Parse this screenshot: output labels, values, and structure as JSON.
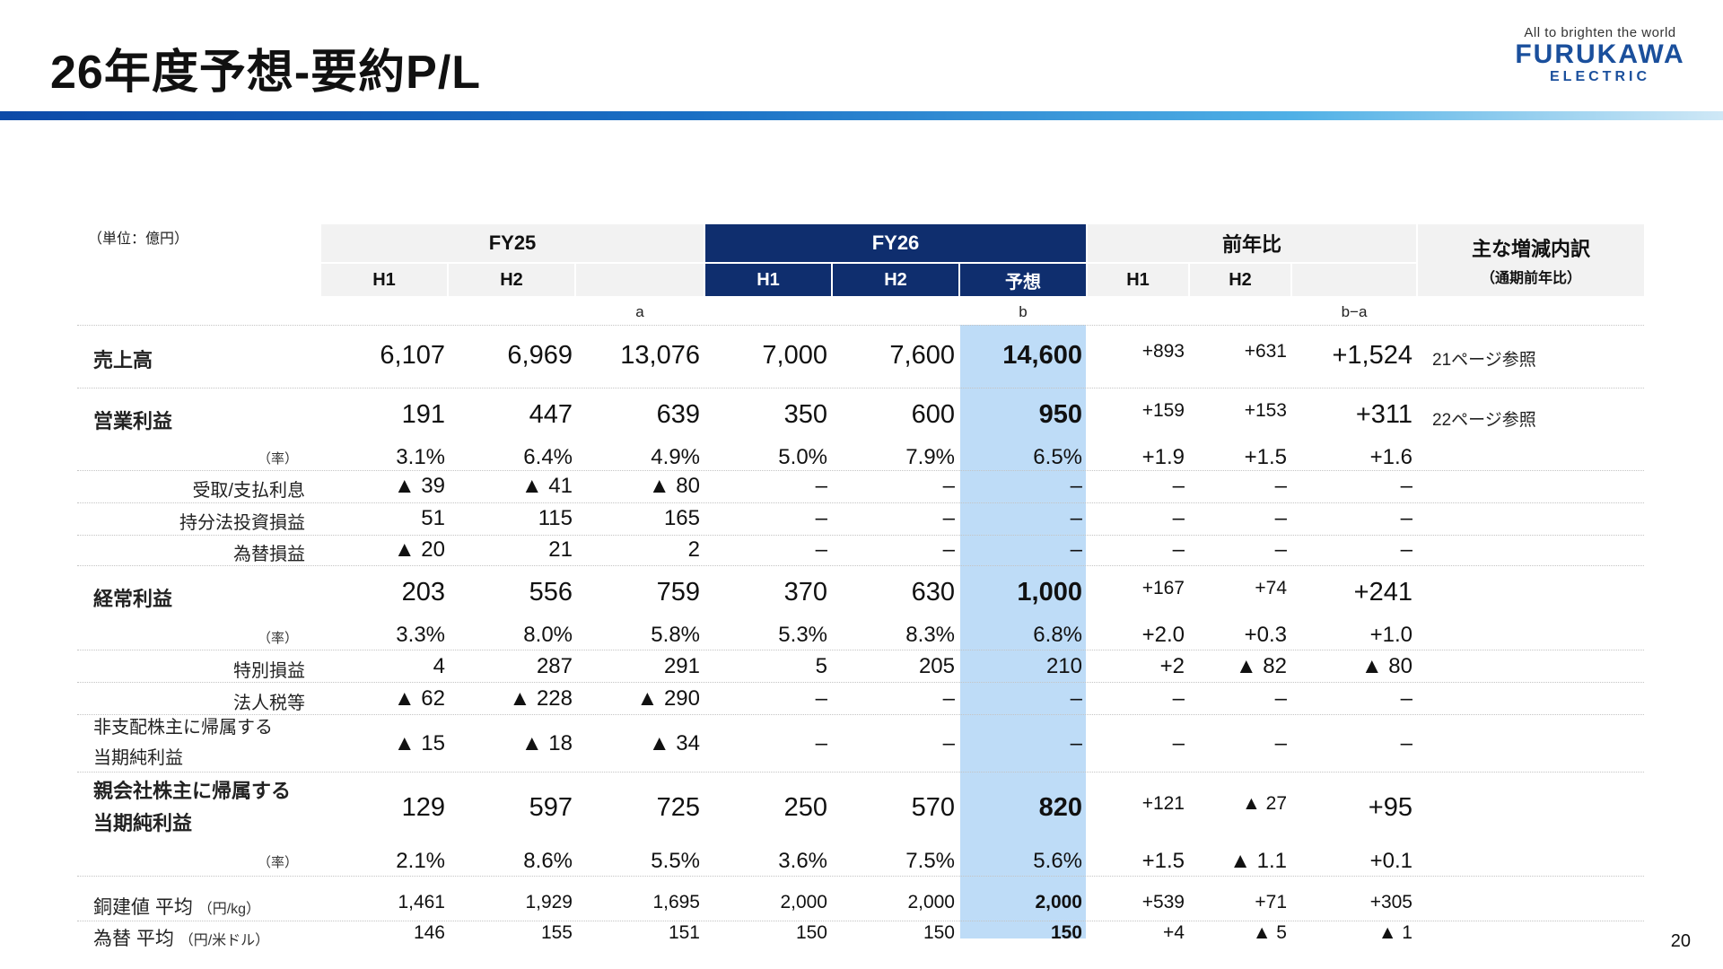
{
  "page": {
    "title": "26年度予想-要約P/L",
    "unit": "（単位：億円）",
    "page_number": "20"
  },
  "logo": {
    "tagline": "All to brighten the world",
    "brand": "FURUKAWA",
    "sub": "ELECTRIC"
  },
  "headers": {
    "fy25": "FY25",
    "fy26": "FY26",
    "yoy": "前年比",
    "notes": "主な増減内訳",
    "notes_sub": "（通期前年比）",
    "h1": "H1",
    "h2": "H2",
    "forecast": "予想",
    "key_a": "a",
    "key_b": "b",
    "key_ba": "b−a"
  },
  "rows": [
    {
      "label": "売上高",
      "values": [
        "6,107",
        "6,969",
        "13,076",
        "7,000",
        "7,600",
        "14,600",
        "+893",
        "+631",
        "+1,524"
      ],
      "note": "21ページ参照"
    },
    {
      "label": "営業利益",
      "values": [
        "191",
        "447",
        "639",
        "350",
        "600",
        "950",
        "+159",
        "+153",
        "+311"
      ],
      "note": "22ページ参照"
    },
    {
      "label": "（率）",
      "values": [
        "3.1%",
        "6.4%",
        "4.9%",
        "5.0%",
        "7.9%",
        "6.5%",
        "+1.9",
        "+1.5",
        "+1.6"
      ]
    },
    {
      "label": "受取/支払利息",
      "values": [
        "▲ 39",
        "▲ 41",
        "▲ 80",
        "–",
        "–",
        "–",
        "–",
        "–",
        "–"
      ]
    },
    {
      "label": "持分法投資損益",
      "values": [
        "51",
        "115",
        "165",
        "–",
        "–",
        "–",
        "–",
        "–",
        "–"
      ]
    },
    {
      "label": "為替損益",
      "values": [
        "▲ 20",
        "21",
        "2",
        "–",
        "–",
        "–",
        "–",
        "–",
        "–"
      ]
    },
    {
      "label": "経常利益",
      "values": [
        "203",
        "556",
        "759",
        "370",
        "630",
        "1,000",
        "+167",
        "+74",
        "+241"
      ]
    },
    {
      "label": "（率）",
      "values": [
        "3.3%",
        "8.0%",
        "5.8%",
        "5.3%",
        "8.3%",
        "6.8%",
        "+2.0",
        "+0.3",
        "+1.0"
      ]
    },
    {
      "label": "特別損益",
      "values": [
        "4",
        "287",
        "291",
        "5",
        "205",
        "210",
        "+2",
        "▲ 82",
        "▲ 80"
      ]
    },
    {
      "label": "法人税等",
      "values": [
        "▲ 62",
        "▲ 228",
        "▲ 290",
        "–",
        "–",
        "–",
        "–",
        "–",
        "–"
      ]
    },
    {
      "label_line1": "非支配株主に帰属する",
      "label_line2": "当期純利益",
      "values": [
        "▲ 15",
        "▲ 18",
        "▲ 34",
        "–",
        "–",
        "–",
        "–",
        "–",
        "–"
      ]
    },
    {
      "label_line1": "親会社株主に帰属する",
      "label_line2": "当期純利益",
      "values": [
        "129",
        "597",
        "725",
        "250",
        "570",
        "820",
        "+121",
        "▲ 27",
        "+95"
      ]
    },
    {
      "label": "（率）",
      "values": [
        "2.1%",
        "8.6%",
        "5.5%",
        "3.6%",
        "7.5%",
        "5.6%",
        "+1.5",
        "▲ 1.1",
        "+0.1"
      ]
    },
    {
      "label": "銅建値 平均",
      "unit": "（円/kg）",
      "values": [
        "1,461",
        "1,929",
        "1,695",
        "2,000",
        "2,000",
        "2,000",
        "+539",
        "+71",
        "+305"
      ]
    },
    {
      "label": "為替 平均",
      "unit": "（円/米ドル）",
      "values": [
        "146",
        "155",
        "151",
        "150",
        "150",
        "150",
        "+4",
        "▲ 5",
        "▲ 1"
      ]
    }
  ],
  "colors": {
    "navy": "#0f2e6e",
    "highlight": "#bedcf7",
    "header_gray": "#f2f2f2",
    "brand_blue": "#1a4f9c"
  }
}
